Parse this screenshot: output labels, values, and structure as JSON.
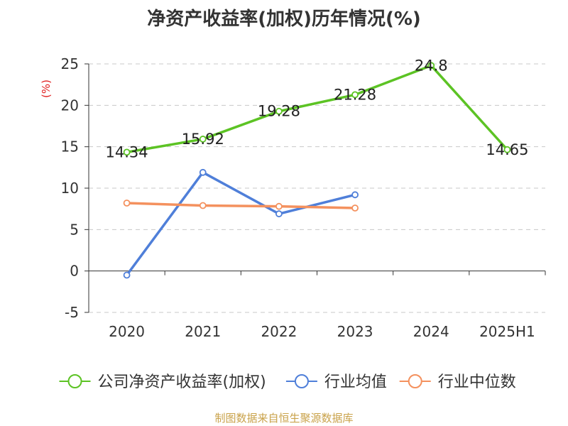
{
  "chart_data": {
    "type": "line",
    "title": "净资产收益率(加权)历年情况(%)",
    "ylabel": "(%)",
    "xlabel": "",
    "categories": [
      "2020",
      "2021",
      "2022",
      "2023",
      "2024",
      "2025H1"
    ],
    "yticks": [
      "25",
      "20",
      "15",
      "10",
      "5",
      "0",
      "-5"
    ],
    "ylim": [
      -5,
      25
    ],
    "grid": true,
    "legend_position": "bottom",
    "series": [
      {
        "name": "公司净资产收益率(加权)",
        "color": "#5cc324",
        "values": [
          14.34,
          15.92,
          19.28,
          21.28,
          24.8,
          14.65
        ],
        "labels": [
          "14.34",
          "15.92",
          "19.28",
          "21.28",
          "24.8",
          "14.65"
        ]
      },
      {
        "name": "行业均值",
        "color": "#4f7fd9",
        "values": [
          -0.5,
          11.9,
          6.9,
          9.2,
          null,
          null
        ]
      },
      {
        "name": "行业中位数",
        "color": "#f4915e",
        "values": [
          8.2,
          7.9,
          7.8,
          7.6,
          null,
          null
        ]
      }
    ]
  },
  "footer": {
    "source": "制图数据来自恒生聚源数据库"
  }
}
